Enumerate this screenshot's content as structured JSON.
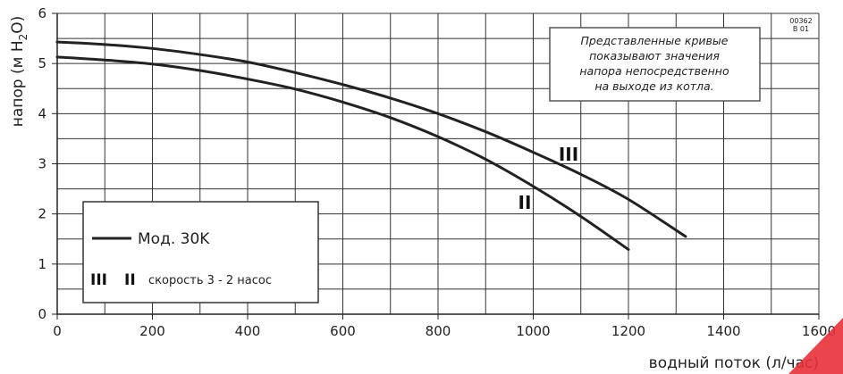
{
  "chart_data": {
    "type": "line",
    "title": "",
    "xlabel": "водный поток (л/час)",
    "ylabel": "напор (м H2O)",
    "ylabel_parts": {
      "pre": "напор (м H",
      "sub": "2",
      "post": "O)"
    },
    "xlim": [
      0,
      1600
    ],
    "ylim": [
      0,
      6
    ],
    "x_ticks": [
      "0",
      "200",
      "400",
      "600",
      "800",
      "1000",
      "1200",
      "1400",
      "1600"
    ],
    "y_ticks": [
      "0",
      "1",
      "2",
      "3",
      "4",
      "5",
      "6"
    ],
    "grid": true,
    "series": [
      {
        "name": "III",
        "x": [
          0,
          100,
          200,
          300,
          400,
          500,
          600,
          700,
          800,
          900,
          1000,
          1100,
          1200,
          1320
        ],
        "y": [
          5.43,
          5.38,
          5.3,
          5.18,
          5.03,
          4.82,
          4.58,
          4.31,
          4.0,
          3.64,
          3.23,
          2.79,
          2.29,
          1.55
        ]
      },
      {
        "name": "II",
        "x": [
          0,
          100,
          200,
          300,
          400,
          500,
          600,
          700,
          800,
          900,
          1000,
          1100,
          1200
        ],
        "y": [
          5.13,
          5.07,
          4.99,
          4.86,
          4.69,
          4.49,
          4.23,
          3.92,
          3.54,
          3.09,
          2.55,
          1.95,
          1.29
        ]
      }
    ],
    "legend": {
      "position": "bottom-left",
      "line_label": "Мод. 30K",
      "speed_marks": [
        "III",
        "II"
      ],
      "speed_label": "скорость 3 - 2 насос"
    },
    "annotation": {
      "lines": [
        "Представленные кривые",
        "показывают  значения",
        "напора непосредственно",
        "на выходе из котла."
      ]
    },
    "doc_code": [
      "00362",
      "B 01"
    ]
  }
}
